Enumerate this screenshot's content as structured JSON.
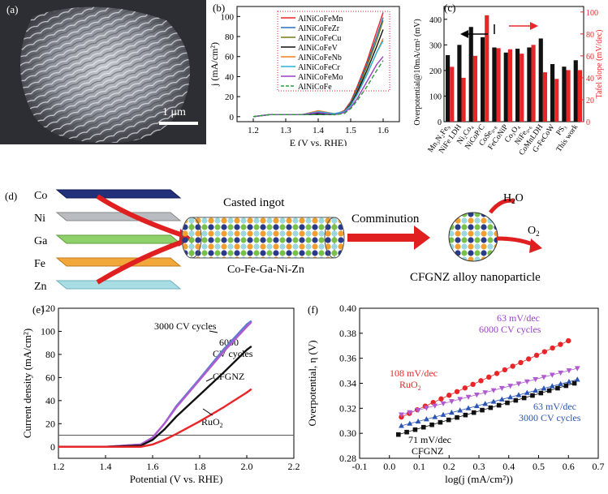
{
  "panels": {
    "a": {
      "label": "(a)",
      "scale_bar": "1 μm"
    },
    "b": {
      "label": "(b)"
    },
    "c": {
      "label": "(c)"
    },
    "d": {
      "label": "(d)",
      "elements": [
        "Co",
        "Ni",
        "Ga",
        "Fe",
        "Zn"
      ],
      "ingot_title": "Casted ingot",
      "ingot_caption": "Co-Fe-Ga-Ni-Zn",
      "arrow_label": "Comminution",
      "h2o": "H",
      "h2o_sub": "2",
      "h2o_end": "O",
      "o2": "O",
      "o2_sub": "2",
      "particle_caption": "CFGNZ alloy nanoparticle"
    },
    "e": {
      "label": "(e)",
      "ann_3000": "3000 CV cycles",
      "ann_6000a": "6000",
      "ann_6000b": "CV cycles",
      "ann_cfgnz": "CFGNZ",
      "ann_ruo2": "RuO",
      "ann_ruo2_sub": "2"
    },
    "f": {
      "label": "(f)",
      "ann_63a": "63 mV/dec",
      "ann_6000": "6000 CV cycles",
      "ann_108": "108 mV/dec",
      "ann_ruo2": "RuO",
      "ann_ruo2_sub": "2",
      "ann_63b": "63 mV/dec",
      "ann_3000": "3000 CV cycles",
      "ann_71": "71 mV/dec",
      "ann_cfgnz": "CFGNZ"
    }
  },
  "chart_data": [
    {
      "id": "b",
      "type": "line",
      "xlabel": "E (V vs. RHE)",
      "ylabel": "j (mA/cm²)",
      "xlim": [
        1.15,
        1.65
      ],
      "ylim": [
        -5,
        110
      ],
      "xticks": [
        "1.2",
        "1.3",
        "1.4",
        "1.5",
        "1.6"
      ],
      "yticks": [
        "0",
        "20",
        "40",
        "60",
        "80",
        "100"
      ],
      "series": [
        {
          "name": "AlNiCoFeMn",
          "color": "#e8262a",
          "dash": false,
          "x": [
            1.2,
            1.25,
            1.3,
            1.35,
            1.4,
            1.45,
            1.48,
            1.5,
            1.52,
            1.55,
            1.58,
            1.6
          ],
          "y": [
            0,
            2,
            2,
            2,
            2,
            2,
            6,
            15,
            30,
            55,
            85,
            104
          ]
        },
        {
          "name": "AlNiCoFeZr",
          "color": "#2a6fb5",
          "dash": false,
          "x": [
            1.2,
            1.25,
            1.3,
            1.35,
            1.4,
            1.45,
            1.48,
            1.5,
            1.52,
            1.55,
            1.58,
            1.6
          ],
          "y": [
            0,
            2,
            2,
            2,
            2,
            2,
            5,
            14,
            28,
            52,
            80,
            99
          ]
        },
        {
          "name": "AlNiCoFeCu",
          "color": "#7a7a18",
          "dash": false,
          "x": [
            1.2,
            1.25,
            1.3,
            1.35,
            1.4,
            1.45,
            1.48,
            1.5,
            1.52,
            1.55,
            1.58,
            1.6
          ],
          "y": [
            0,
            2,
            2,
            2,
            3,
            2,
            5,
            13,
            26,
            50,
            76,
            96
          ]
        },
        {
          "name": "AlNiCoFeV",
          "color": "#111111",
          "dash": false,
          "x": [
            1.2,
            1.25,
            1.3,
            1.35,
            1.4,
            1.45,
            1.48,
            1.5,
            1.52,
            1.55,
            1.58,
            1.6
          ],
          "y": [
            0,
            2,
            2,
            2,
            3,
            2,
            5,
            12,
            24,
            46,
            70,
            87
          ]
        },
        {
          "name": "AlNiCoFeNb",
          "color": "#f08020",
          "dash": false,
          "x": [
            1.2,
            1.25,
            1.3,
            1.35,
            1.4,
            1.45,
            1.48,
            1.5,
            1.52,
            1.55,
            1.58,
            1.6
          ],
          "y": [
            0,
            2,
            2,
            2,
            6,
            3,
            5,
            11,
            22,
            42,
            64,
            78
          ]
        },
        {
          "name": "AlNiCoFeCr",
          "color": "#2ab0d8",
          "dash": false,
          "x": [
            1.2,
            1.25,
            1.3,
            1.35,
            1.4,
            1.45,
            1.48,
            1.5,
            1.52,
            1.55,
            1.58,
            1.6
          ],
          "y": [
            0,
            2,
            2,
            2,
            5,
            3,
            5,
            11,
            22,
            42,
            64,
            76
          ]
        },
        {
          "name": "AlNiCoFeMo",
          "color": "#9a3fc8",
          "dash": false,
          "x": [
            1.2,
            1.25,
            1.3,
            1.35,
            1.4,
            1.45,
            1.48,
            1.5,
            1.52,
            1.55,
            1.58,
            1.6
          ],
          "y": [
            0,
            2,
            2,
            2,
            4,
            2,
            4,
            9,
            18,
            35,
            52,
            60
          ]
        },
        {
          "name": "AlNiCoFe",
          "color": "#2a9a3a",
          "dash": true,
          "x": [
            1.2,
            1.25,
            1.3,
            1.35,
            1.4,
            1.45,
            1.48,
            1.5,
            1.52,
            1.55,
            1.58,
            1.6
          ],
          "y": [
            0,
            2,
            2,
            2,
            2,
            2,
            3,
            8,
            16,
            30,
            46,
            56
          ]
        }
      ]
    },
    {
      "id": "c",
      "type": "bar",
      "ylabel": "Overpotential@10mA/cm² (mV)",
      "y2label": "Tafel slope (mV/dec)",
      "ylim": [
        0,
        450
      ],
      "y2lim": [
        0,
        105
      ],
      "yticks": [
        "0",
        "100",
        "200",
        "300",
        "400"
      ],
      "y2ticks": [
        "0",
        "20",
        "40",
        "60",
        "80",
        "100"
      ],
      "categories": [
        "Mn₃N₂Fe₉",
        "NiFe LDH",
        "Ni₂Co₄",
        "NiCoP/C",
        "CoSe₀.₈",
        "FeCoNiP",
        "Co₃O₄",
        "NiFe₀.₆",
        "CoMnLDH",
        "G-FeCoW",
        "PS₃",
        "This work"
      ],
      "series": [
        {
          "name": "Overpotential",
          "color": "#111111",
          "values": [
            260,
            300,
            370,
            330,
            290,
            270,
            285,
            290,
            325,
            225,
            215,
            240
          ]
        },
        {
          "name": "Tafel slope",
          "color": "#e8262a",
          "axis": "right",
          "values": [
            50,
            40,
            60,
            97,
            67,
            66,
            62,
            70,
            45,
            39,
            47,
            47
          ]
        }
      ]
    },
    {
      "id": "e",
      "type": "line",
      "xlabel": "Potential (V vs. RHE)",
      "ylabel": "Current density (mA/cm²)",
      "xlim": [
        1.2,
        2.2
      ],
      "ylim": [
        -10,
        120
      ],
      "xticks": [
        "1.2",
        "1.4",
        "1.6",
        "1.8",
        "2.0",
        "2.2"
      ],
      "yticks": [
        "0",
        "20",
        "40",
        "60",
        "80",
        "100",
        "120"
      ],
      "series": [
        {
          "name": "3000 CV cycles",
          "color": "#5a7fd0",
          "x": [
            1.2,
            1.4,
            1.55,
            1.6,
            1.65,
            1.7,
            1.8,
            1.9,
            2.0,
            2.02
          ],
          "y": [
            0,
            0,
            2,
            8,
            20,
            35,
            59,
            84,
            106,
            109
          ]
        },
        {
          "name": "6000 CV cycles",
          "color": "#b05ad0",
          "x": [
            1.2,
            1.4,
            1.55,
            1.6,
            1.65,
            1.7,
            1.8,
            1.9,
            2.0,
            2.02
          ],
          "y": [
            0,
            0,
            2,
            8,
            20,
            34,
            58,
            82,
            104,
            108
          ]
        },
        {
          "name": "CFGNZ",
          "color": "#111111",
          "x": [
            1.2,
            1.4,
            1.55,
            1.6,
            1.65,
            1.7,
            1.8,
            1.9,
            2.0,
            2.02
          ],
          "y": [
            0,
            0,
            1,
            6,
            15,
            26,
            45,
            64,
            84,
            87
          ]
        },
        {
          "name": "RuO₂",
          "color": "#e8262a",
          "x": [
            1.2,
            1.4,
            1.55,
            1.6,
            1.65,
            1.7,
            1.8,
            1.9,
            2.0,
            2.02
          ],
          "y": [
            0,
            0,
            0,
            2,
            6,
            11,
            22,
            34,
            47,
            50
          ]
        }
      ],
      "hline": 10
    },
    {
      "id": "f",
      "type": "scatter",
      "xlabel": "log(j (mA/cm²))",
      "ylabel": "Overpotential, η (V)",
      "xlim": [
        -0.1,
        0.7
      ],
      "ylim": [
        0.28,
        0.4
      ],
      "xticks": [
        "-0.1",
        "0.0",
        "0.1",
        "0.2",
        "0.3",
        "0.4",
        "0.5",
        "0.6",
        "0.7"
      ],
      "yticks": [
        "0.28",
        "0.30",
        "0.32",
        "0.34",
        "0.36",
        "0.38",
        "0.40"
      ],
      "series": [
        {
          "name": "RuO₂",
          "color": "#e8262a",
          "marker": "circle",
          "x0": 0.04,
          "x1": 0.6,
          "y0": 0.313,
          "y1": 0.374
        },
        {
          "name": "6000 CV cycles",
          "color": "#b05ad0",
          "marker": "triangle-down",
          "x0": 0.04,
          "x1": 0.63,
          "y0": 0.315,
          "y1": 0.352
        },
        {
          "name": "3000 CV cycles",
          "color": "#2a55b5",
          "marker": "triangle-up",
          "x0": 0.04,
          "x1": 0.63,
          "y0": 0.306,
          "y1": 0.343
        },
        {
          "name": "CFGNZ",
          "color": "#111111",
          "marker": "square",
          "x0": 0.03,
          "x1": 0.62,
          "y0": 0.299,
          "y1": 0.34
        }
      ]
    }
  ]
}
